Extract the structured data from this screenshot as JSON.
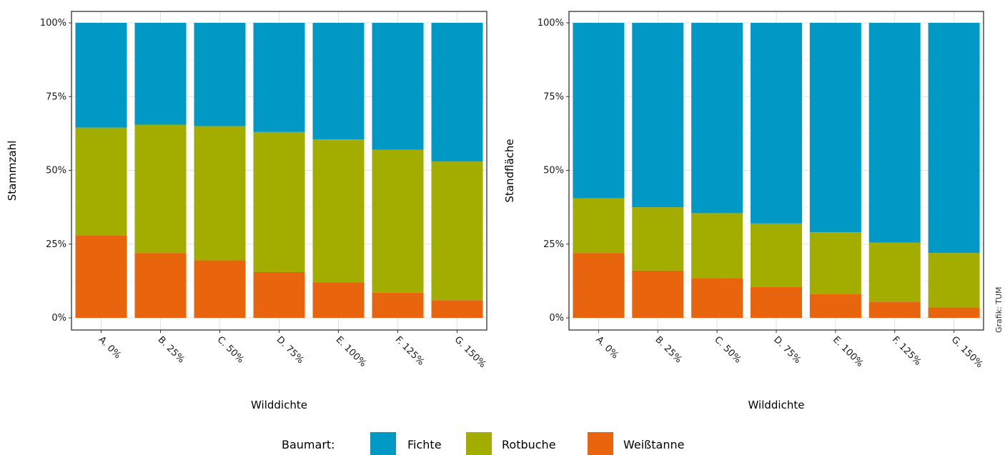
{
  "chart_data": [
    {
      "type": "bar",
      "stacked": true,
      "ylabel": "Stammzahl",
      "xlabel": "Wilddichte",
      "categories": [
        "A. 0%",
        "B. 25%",
        "C. 50%",
        "D. 75%",
        "E. 100%",
        "F. 125%",
        "G. 150%"
      ],
      "series": [
        {
          "name": "Weißtanne",
          "values": [
            28,
            22,
            19.5,
            15.5,
            12,
            8.5,
            6
          ]
        },
        {
          "name": "Rotbuche",
          "values": [
            36.5,
            43.5,
            45.5,
            47.5,
            48.5,
            48.5,
            47
          ]
        },
        {
          "name": "Fichte",
          "values": [
            35.5,
            34.5,
            35,
            37,
            39.5,
            43,
            47
          ]
        }
      ],
      "ylim": [
        0,
        100
      ],
      "yticks": [
        "0%",
        "25%",
        "50%",
        "75%",
        "100%"
      ],
      "grid": true
    },
    {
      "type": "bar",
      "stacked": true,
      "ylabel": "Standfläche",
      "xlabel": "Wilddichte",
      "categories": [
        "A. 0%",
        "B. 25%",
        "C. 50%",
        "D. 75%",
        "E. 100%",
        "F. 125%",
        "G. 150%"
      ],
      "series": [
        {
          "name": "Weißtanne",
          "values": [
            22,
            16,
            13.5,
            10.5,
            8,
            5.5,
            3.5
          ]
        },
        {
          "name": "Rotbuche",
          "values": [
            18.5,
            21.5,
            22,
            21.5,
            21,
            20,
            18.5
          ]
        },
        {
          "name": "Fichte",
          "values": [
            59.5,
            62.5,
            64.5,
            68,
            71,
            74.5,
            78
          ]
        }
      ],
      "ylim": [
        0,
        100
      ],
      "yticks": [
        "0%",
        "25%",
        "50%",
        "75%",
        "100%"
      ],
      "grid": true
    }
  ],
  "legend": {
    "title": "Baumart:",
    "placement": "bottom",
    "items": [
      {
        "label": "Fichte",
        "color": "#0099c6"
      },
      {
        "label": "Rotbuche",
        "color": "#a2ad00"
      },
      {
        "label": "Weißtanne",
        "color": "#e8650d"
      }
    ]
  },
  "colors": {
    "Fichte": "#0099c6",
    "Rotbuche": "#a2ad00",
    "Weißtanne": "#e8650d"
  },
  "credit": "Grafik: TUM"
}
